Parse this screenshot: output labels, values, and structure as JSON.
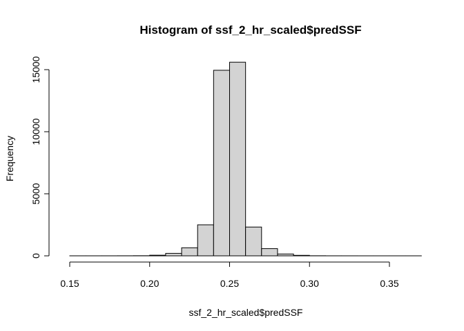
{
  "chart_data": {
    "type": "bar",
    "title": "Histogram of ssf_2_hr_scaled$predSSF",
    "xlabel": "ssf_2_hr_scaled$predSSF",
    "ylabel": "Frequency",
    "xlim": [
      0.15,
      0.37
    ],
    "ylim": [
      0,
      15800
    ],
    "x_ticks": [
      0.15,
      0.2,
      0.25,
      0.3,
      0.35
    ],
    "x_tick_labels": [
      "0.15",
      "0.20",
      "0.25",
      "0.30",
      "0.35"
    ],
    "y_ticks": [
      0,
      5000,
      10000,
      15000
    ],
    "y_tick_labels": [
      "0",
      "5000",
      "10000",
      "15000"
    ],
    "bins": [
      {
        "start": 0.15,
        "end": 0.16,
        "count": 2
      },
      {
        "start": 0.16,
        "end": 0.17,
        "count": 2
      },
      {
        "start": 0.17,
        "end": 0.18,
        "count": 3
      },
      {
        "start": 0.18,
        "end": 0.19,
        "count": 5
      },
      {
        "start": 0.19,
        "end": 0.2,
        "count": 10
      },
      {
        "start": 0.2,
        "end": 0.21,
        "count": 50
      },
      {
        "start": 0.21,
        "end": 0.22,
        "count": 200
      },
      {
        "start": 0.22,
        "end": 0.23,
        "count": 650
      },
      {
        "start": 0.23,
        "end": 0.24,
        "count": 2500
      },
      {
        "start": 0.24,
        "end": 0.25,
        "count": 14950
      },
      {
        "start": 0.25,
        "end": 0.26,
        "count": 15600
      },
      {
        "start": 0.26,
        "end": 0.27,
        "count": 2320
      },
      {
        "start": 0.27,
        "end": 0.28,
        "count": 580
      },
      {
        "start": 0.28,
        "end": 0.29,
        "count": 150
      },
      {
        "start": 0.29,
        "end": 0.3,
        "count": 40
      },
      {
        "start": 0.3,
        "end": 0.31,
        "count": 8
      },
      {
        "start": 0.31,
        "end": 0.32,
        "count": 3
      },
      {
        "start": 0.32,
        "end": 0.33,
        "count": 2
      },
      {
        "start": 0.33,
        "end": 0.34,
        "count": 1
      },
      {
        "start": 0.34,
        "end": 0.35,
        "count": 1
      },
      {
        "start": 0.35,
        "end": 0.36,
        "count": 1
      },
      {
        "start": 0.36,
        "end": 0.37,
        "count": 1
      }
    ],
    "bar_color": "#d3d3d3",
    "grid": false,
    "legend": "none"
  }
}
